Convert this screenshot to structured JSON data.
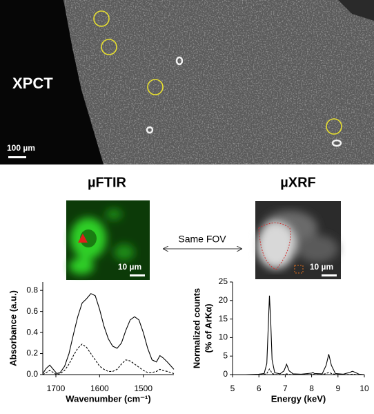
{
  "image_panel": {
    "label": "XPCT",
    "scale_bar": "100 µm"
  },
  "ftir_panel": {
    "title": "µFTIR",
    "scale_bar": "10 µm"
  },
  "xrf_panel": {
    "title": "µXRF",
    "scale_bar": "10 µm"
  },
  "comparison_label": "Same FOV",
  "chart_data": [
    {
      "type": "line",
      "x_label": "Wavenumber (cm⁻¹)",
      "y_label": [
        "Absorbance (a.u.)"
      ],
      "x": [
        1730,
        1722,
        1714,
        1706,
        1698,
        1690,
        1680,
        1670,
        1660,
        1650,
        1640,
        1630,
        1620,
        1610,
        1600,
        1590,
        1580,
        1570,
        1560,
        1550,
        1540,
        1530,
        1520,
        1510,
        1500,
        1490,
        1480,
        1470,
        1462,
        1455,
        1445,
        1430
      ],
      "series": [
        {
          "color": "#000000",
          "dashed": false,
          "values": [
            0.01,
            0.06,
            0.09,
            0.05,
            0.01,
            0.02,
            0.08,
            0.2,
            0.38,
            0.55,
            0.68,
            0.72,
            0.77,
            0.75,
            0.62,
            0.46,
            0.34,
            0.27,
            0.25,
            0.3,
            0.42,
            0.52,
            0.55,
            0.52,
            0.4,
            0.25,
            0.14,
            0.12,
            0.18,
            0.16,
            0.12,
            0.05
          ]
        },
        {
          "color": "#000000",
          "dashed": true,
          "values": [
            0,
            0.02,
            0.04,
            0.02,
            0,
            0.01,
            0.04,
            0.1,
            0.18,
            0.25,
            0.29,
            0.26,
            0.2,
            0.14,
            0.08,
            0.05,
            0.03,
            0.03,
            0.05,
            0.1,
            0.14,
            0.13,
            0.1,
            0.07,
            0.04,
            0.02,
            0.02,
            0.03,
            0.05,
            0.04,
            0.03,
            0.01
          ]
        }
      ],
      "xlim": [
        1730,
        1430
      ],
      "xticks": [
        1700,
        1600,
        1500
      ],
      "ylim": [
        0,
        0.88
      ],
      "yticks": [
        {
          "value": 0,
          "label": "0.0"
        },
        0.2,
        0.4,
        0.6,
        0.8
      ]
    },
    {
      "type": "line",
      "x_label": "Energy (keV)",
      "y_label": [
        "Normalized counts",
        "(% of ArKα)"
      ],
      "x": [
        5,
        5.5,
        6,
        6.2,
        6.3,
        6.35,
        6.4,
        6.45,
        6.5,
        6.6,
        6.8,
        6.95,
        7.05,
        7.15,
        7.3,
        7.6,
        8.0,
        8.05,
        8.1,
        8.4,
        8.55,
        8.65,
        8.75,
        8.9,
        9.2,
        9.45,
        9.55,
        9.65,
        9.8,
        10
      ],
      "series": [
        {
          "color": "#000000",
          "dashed": false,
          "values": [
            0,
            0,
            0.1,
            0.3,
            3,
            12,
            21.3,
            14,
            4,
            0.5,
            0.2,
            1,
            2.8,
            1,
            0.2,
            0.1,
            0.4,
            0.6,
            0.3,
            0.2,
            2.5,
            5.5,
            2.5,
            0.3,
            0.1,
            0.6,
            0.9,
            0.6,
            0.1,
            0
          ]
        },
        {
          "color": "#000000",
          "dashed": true,
          "values": [
            0,
            0,
            0,
            0.05,
            0.3,
            0.9,
            1.5,
            1,
            0.3,
            0.05,
            0,
            0.05,
            0.2,
            0.05,
            0,
            0,
            0.05,
            0.1,
            0.05,
            0,
            0.3,
            0.6,
            0.3,
            0.05,
            0,
            0.05,
            0.1,
            0.05,
            0,
            0
          ]
        }
      ],
      "xlim": [
        5,
        10
      ],
      "xticks": [
        5,
        6,
        7,
        8,
        9,
        10
      ],
      "ylim": [
        0,
        25
      ],
      "yticks": [
        0,
        5,
        10,
        15,
        20,
        25
      ]
    }
  ]
}
